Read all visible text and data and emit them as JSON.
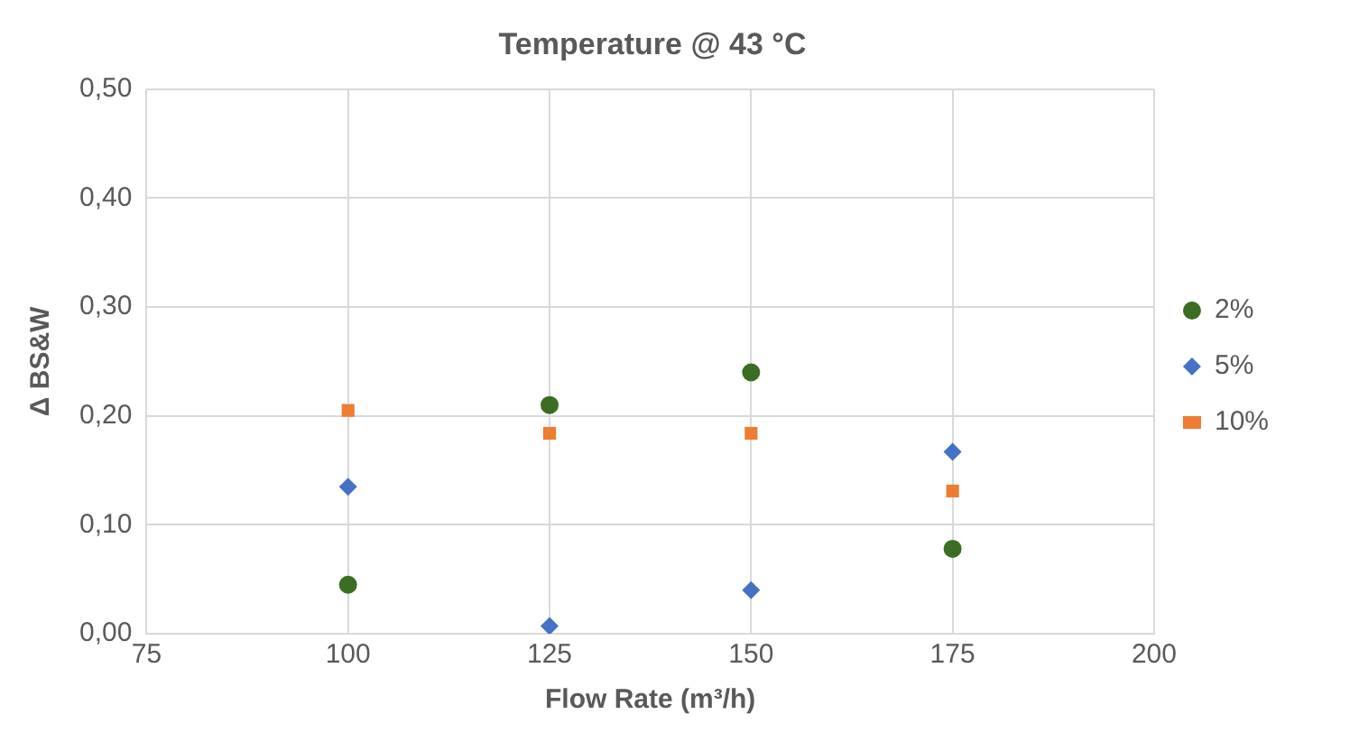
{
  "chart_data": {
    "type": "scatter",
    "title": "Temperature @ 43 °C",
    "xlabel": "Flow Rate (m³/h)",
    "ylabel": "Δ BS&W",
    "x": [
      100,
      125,
      150,
      175
    ],
    "series": [
      {
        "name": "2%",
        "color": "#3b6e22",
        "marker": "circle",
        "values": [
          0.045,
          0.21,
          0.24,
          0.078
        ]
      },
      {
        "name": "5%",
        "color": "#4472c4",
        "marker": "diamond",
        "values": [
          0.135,
          0.007,
          0.04,
          0.167
        ]
      },
      {
        "name": "10%",
        "color": "#ed7d31",
        "marker": "square",
        "values": [
          0.205,
          0.184,
          0.184,
          0.131
        ]
      }
    ],
    "xlim": [
      75,
      200
    ],
    "xticks": [
      75,
      100,
      125,
      150,
      175,
      200
    ],
    "ylim": [
      0,
      0.5
    ],
    "yticks": [
      {
        "value": 0,
        "label": "0,00"
      },
      {
        "value": 0.1,
        "label": "0,10"
      },
      {
        "value": 0.2,
        "label": "0,20"
      },
      {
        "value": 0.3,
        "label": "0,30"
      },
      {
        "value": 0.4,
        "label": "0,40"
      },
      {
        "value": 0.5,
        "label": "0,50"
      }
    ],
    "grid": true,
    "legend": "right"
  }
}
